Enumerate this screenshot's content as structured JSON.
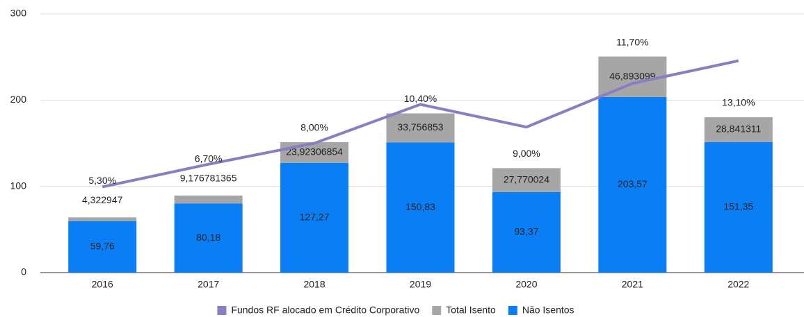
{
  "chart_data": {
    "type": "stacked_bar_line",
    "categories": [
      "2016",
      "2017",
      "2018",
      "2019",
      "2020",
      "2021",
      "2022"
    ],
    "ylim": [
      0,
      300
    ],
    "yticks": [
      0,
      100,
      200,
      300
    ],
    "y2lim": [
      0,
      16
    ],
    "grid": true,
    "series": [
      {
        "name": "Não Isentos",
        "color": "#0a7ff5",
        "values": [
          59.76,
          80.18,
          127.27,
          150.83,
          93.37,
          203.57,
          151.35
        ],
        "value_labels": [
          "59,76",
          "80,18",
          "127,27",
          "150,83",
          "93,37",
          "203,57",
          "151,35"
        ]
      },
      {
        "name": "Total Isento",
        "color": "#a6a6a6",
        "values": [
          4.322947,
          9.176781365,
          23.92306854,
          33.756853,
          27.770024,
          46.893099,
          28.841311
        ],
        "value_labels": [
          "4,322947",
          "9,176781365",
          "23,92306854",
          "33,756853",
          "27,770024",
          "46,893099",
          "28,841311"
        ]
      },
      {
        "name": "Fundos RF alocado em Crédito Corporativo",
        "color": "#8a7dc2",
        "axis": "y2",
        "values": [
          5.3,
          6.7,
          8.0,
          10.4,
          9.0,
          11.7,
          13.1
        ],
        "value_labels": [
          "5,30%",
          "6,70%",
          "8,00%",
          "10,40%",
          "9,00%",
          "11,70%",
          "13,10%"
        ]
      }
    ]
  }
}
